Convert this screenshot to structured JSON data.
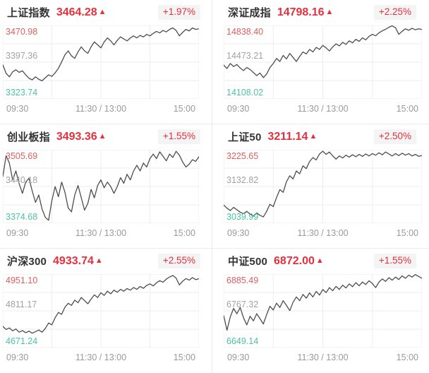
{
  "colors": {
    "up_red": "#e5303d",
    "axis_high_red": "#e05e5e",
    "axis_mid_gray": "#a2a2a2",
    "axis_low_green": "#4cc2a4",
    "x_label_gray": "#999999",
    "line": "#4d4d4d",
    "grid": "#ededed",
    "badge_bg": "#f4f4f5",
    "divider": "#ebebeb",
    "title_dark": "#333333"
  },
  "xaxis": {
    "open": "09:30",
    "midday": "11:30 / 13:00",
    "close": "15:00"
  },
  "panels": [
    {
      "name": "上证指数",
      "value": "3464.28",
      "arrow": "▲",
      "change": "+1.97%",
      "axis_high": "3470.98",
      "axis_mid": "3397.36",
      "axis_low": "3323.74"
    },
    {
      "name": "深证成指",
      "value": "14798.16",
      "arrow": "▲",
      "change": "+2.25%",
      "axis_high": "14838.40",
      "axis_mid": "14473.21",
      "axis_low": "14108.02"
    },
    {
      "name": "创业板指",
      "value": "3493.36",
      "arrow": "▲",
      "change": "+1.55%",
      "axis_high": "3505.69",
      "axis_mid": "3440.18",
      "axis_low": "3374.68"
    },
    {
      "name": "上证50",
      "value": "3211.14",
      "arrow": "▲",
      "change": "+2.50%",
      "axis_high": "3225.65",
      "axis_mid": "3132.82",
      "axis_low": "3039.99"
    },
    {
      "name": "沪深300",
      "value": "4933.74",
      "arrow": "▲",
      "change": "+2.55%",
      "axis_high": "4951.10",
      "axis_mid": "4811.17",
      "axis_low": "4671.24"
    },
    {
      "name": "中证500",
      "value": "6872.00",
      "arrow": "▲",
      "change": "+1.55%",
      "axis_high": "6885.49",
      "axis_mid": "6767.32",
      "axis_low": "6649.14"
    }
  ],
  "chart_data": [
    {
      "type": "line",
      "title": "上证指数",
      "last": 3464.28,
      "change_percent": "+1.97%",
      "x_ticks": [
        "09:30",
        "11:30 / 13:00",
        "15:00"
      ],
      "y_ticks": [
        3323.74,
        3397.36,
        3470.98
      ],
      "ylim": [
        3323.74,
        3470.98
      ],
      "values": [
        3392,
        3375,
        3368,
        3378,
        3382,
        3377,
        3380,
        3372,
        3365,
        3362,
        3368,
        3363,
        3360,
        3366,
        3372,
        3369,
        3376,
        3385,
        3398,
        3412,
        3420,
        3410,
        3405,
        3418,
        3428,
        3420,
        3415,
        3428,
        3438,
        3432,
        3426,
        3438,
        3446,
        3440,
        3432,
        3441,
        3448,
        3444,
        3440,
        3446,
        3450,
        3446,
        3451,
        3448,
        3453,
        3450,
        3455,
        3459,
        3456,
        3461,
        3458,
        3463,
        3466,
        3461,
        3450,
        3457,
        3463,
        3460,
        3466,
        3463,
        3464.28
      ]
    },
    {
      "type": "line",
      "title": "深证成指",
      "last": 14798.16,
      "change_percent": "+2.25%",
      "x_ticks": [
        "09:30",
        "11:30 / 13:00",
        "15:00"
      ],
      "y_ticks": [
        14108.02,
        14473.21,
        14838.4
      ],
      "ylim": [
        14108.02,
        14838.4
      ],
      "values": [
        14445,
        14410,
        14460,
        14430,
        14450,
        14415,
        14390,
        14420,
        14400,
        14370,
        14340,
        14365,
        14320,
        14355,
        14420,
        14460,
        14510,
        14480,
        14540,
        14505,
        14560,
        14520,
        14480,
        14530,
        14575,
        14555,
        14600,
        14575,
        14620,
        14600,
        14640,
        14615,
        14585,
        14625,
        14655,
        14635,
        14670,
        14650,
        14685,
        14665,
        14700,
        14680,
        14715,
        14695,
        14730,
        14750,
        14735,
        14765,
        14785,
        14800,
        14820,
        14835,
        14815,
        14750,
        14780,
        14805,
        14790,
        14810,
        14795,
        14805,
        14798.16
      ]
    },
    {
      "type": "line",
      "title": "创业板指",
      "last": 3493.36,
      "change_percent": "+1.55%",
      "x_ticks": [
        "09:30",
        "11:30 / 13:00",
        "15:00"
      ],
      "y_ticks": [
        3374.68,
        3440.18,
        3505.69
      ],
      "ylim": [
        3374.68,
        3505.69
      ],
      "values": [
        3458,
        3495,
        3482,
        3452,
        3468,
        3445,
        3428,
        3448,
        3455,
        3432,
        3412,
        3425,
        3400,
        3385,
        3380,
        3415,
        3440,
        3422,
        3448,
        3430,
        3402,
        3395,
        3425,
        3442,
        3420,
        3398,
        3410,
        3435,
        3420,
        3442,
        3452,
        3438,
        3448,
        3440,
        3428,
        3440,
        3456,
        3446,
        3462,
        3452,
        3468,
        3478,
        3468,
        3482,
        3475,
        3490,
        3498,
        3490,
        3502,
        3494,
        3486,
        3498,
        3492,
        3503,
        3496,
        3484,
        3475,
        3480,
        3488,
        3485,
        3493.36
      ]
    },
    {
      "type": "line",
      "title": "上证50",
      "last": 3211.14,
      "change_percent": "+2.50%",
      "x_ticks": [
        "09:30",
        "11:30 / 13:00",
        "15:00"
      ],
      "y_ticks": [
        3039.99,
        3132.82,
        3225.65
      ],
      "ylim": [
        3039.99,
        3225.65
      ],
      "values": [
        3086,
        3078,
        3072,
        3080,
        3074,
        3068,
        3064,
        3070,
        3063,
        3058,
        3066,
        3060,
        3056,
        3070,
        3088,
        3082,
        3105,
        3125,
        3118,
        3145,
        3160,
        3152,
        3172,
        3165,
        3185,
        3178,
        3196,
        3206,
        3200,
        3215,
        3222,
        3214,
        3220,
        3210,
        3202,
        3210,
        3205,
        3212,
        3207,
        3213,
        3208,
        3214,
        3209,
        3215,
        3210,
        3216,
        3212,
        3218,
        3213,
        3220,
        3215,
        3210,
        3216,
        3211,
        3217,
        3212,
        3216,
        3210,
        3214,
        3209,
        3211.14
      ]
    },
    {
      "type": "line",
      "title": "沪深300",
      "last": 4933.74,
      "change_percent": "+2.55%",
      "x_ticks": [
        "09:30",
        "11:30 / 13:00",
        "15:00"
      ],
      "y_ticks": [
        4671.24,
        4811.17,
        4951.1
      ],
      "ylim": [
        4671.24,
        4951.1
      ],
      "values": [
        4752,
        4740,
        4746,
        4735,
        4742,
        4730,
        4736,
        4728,
        4734,
        4726,
        4732,
        4738,
        4730,
        4744,
        4765,
        4758,
        4785,
        4805,
        4798,
        4825,
        4840,
        4832,
        4852,
        4842,
        4862,
        4850,
        4838,
        4856,
        4872,
        4862,
        4880,
        4870,
        4886,
        4876,
        4890,
        4882,
        4893,
        4886,
        4896,
        4890,
        4900,
        4893,
        4904,
        4897,
        4908,
        4914,
        4906,
        4918,
        4926,
        4920,
        4932,
        4940,
        4946,
        4936,
        4910,
        4924,
        4934,
        4928,
        4938,
        4930,
        4933.74
      ]
    },
    {
      "type": "line",
      "title": "中证500",
      "last": 6872.0,
      "change_percent": "+1.55%",
      "x_ticks": [
        "09:30",
        "11:30 / 13:00",
        "15:00"
      ],
      "y_ticks": [
        6649.14,
        6767.32,
        6885.49
      ],
      "ylim": [
        6649.14,
        6885.49
      ],
      "values": [
        6752,
        6705,
        6748,
        6775,
        6758,
        6778,
        6745,
        6722,
        6750,
        6735,
        6758,
        6742,
        6725,
        6755,
        6782,
        6770,
        6792,
        6778,
        6800,
        6785,
        6768,
        6795,
        6812,
        6800,
        6820,
        6808,
        6825,
        6812,
        6830,
        6818,
        6836,
        6826,
        6842,
        6832,
        6846,
        6836,
        6850,
        6841,
        6854,
        6845,
        6858,
        6848,
        6860,
        6852,
        6864,
        6855,
        6842,
        6860,
        6870,
        6862,
        6874,
        6866,
        6876,
        6868,
        6880,
        6872,
        6882,
        6876,
        6884,
        6878,
        6872.0
      ]
    }
  ]
}
